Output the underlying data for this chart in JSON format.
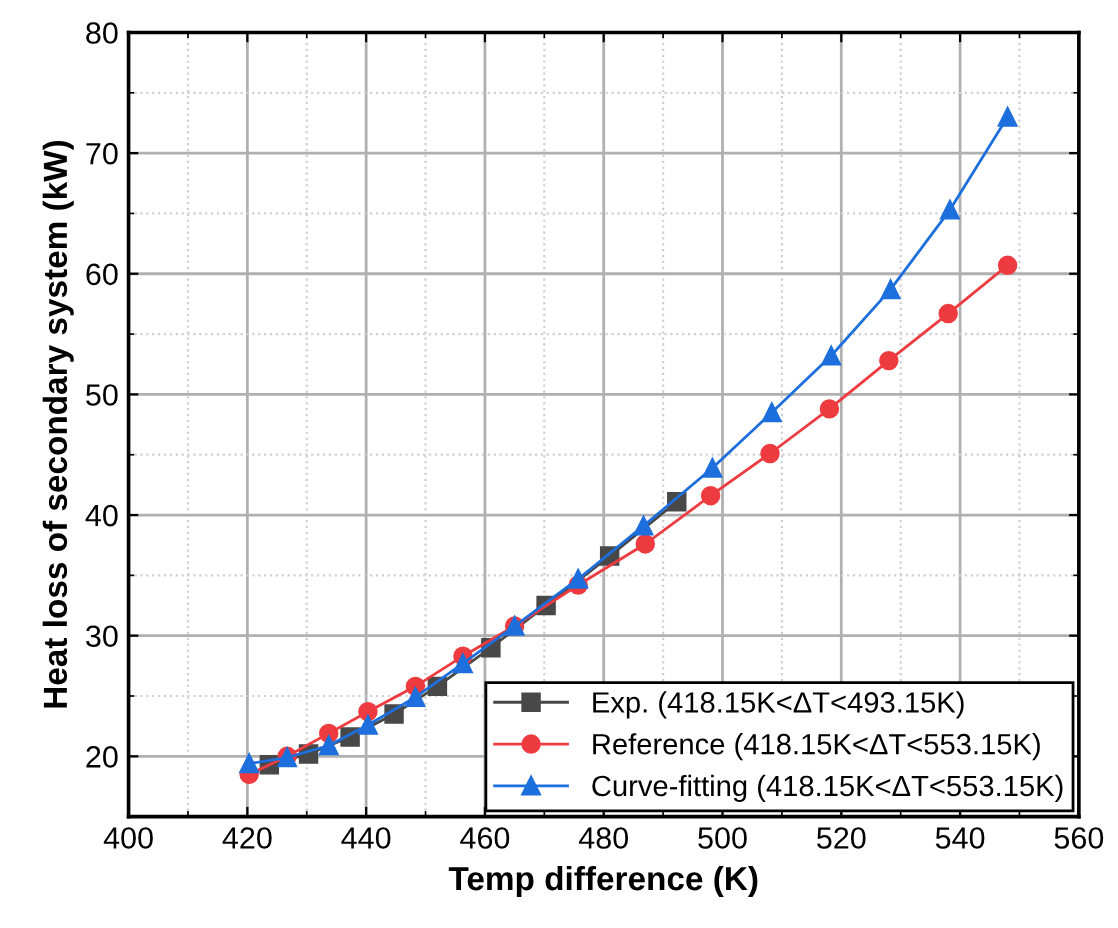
{
  "chart_data": {
    "type": "line",
    "xlabel": "Temp difference (K)",
    "ylabel": "Heat loss of secondary system (kW)",
    "xlim": [
      400,
      560
    ],
    "xticks": [
      400,
      420,
      440,
      460,
      480,
      500,
      520,
      540,
      560
    ],
    "ylim": [
      15,
      80
    ],
    "yticks": [
      20,
      30,
      40,
      50,
      60,
      70,
      80
    ],
    "grid": true,
    "legend": "bottom right",
    "series": [
      {
        "name": "Exp. (418.15K<ΔT<493.15K)",
        "color": "#484848",
        "marker": "square",
        "x": [
          423.7,
          430.3,
          437.3,
          444.7,
          452,
          461,
          470.3,
          481,
          492.3
        ],
        "values": [
          19.3,
          20.2,
          21.6,
          23.5,
          25.8,
          29.0,
          32.5,
          36.6,
          41.1
        ]
      },
      {
        "name": "Reference (418.15K<ΔT<553.15K)",
        "color": "#ee3b40",
        "marker": "circle",
        "x": [
          420.3,
          426.7,
          433.7,
          440.3,
          448.3,
          456.3,
          465,
          475.7,
          487,
          498,
          508,
          518,
          528,
          538,
          548
        ],
        "values": [
          18.5,
          20.0,
          21.9,
          23.7,
          25.8,
          28.3,
          30.8,
          34.2,
          37.6,
          41.6,
          45.1,
          48.8,
          52.8,
          56.7,
          60.7
        ]
      },
      {
        "name": "Curve-fitting (418.15K<ΔT<553.15K)",
        "color": "#1c6fdc",
        "marker": "triangle",
        "x": [
          420.3,
          426.7,
          433.7,
          440.3,
          448.3,
          456.3,
          465,
          475.7,
          486.7,
          498.3,
          508.3,
          518.3,
          528.3,
          538.3,
          548
        ],
        "values": [
          19.4,
          19.9,
          20.9,
          22.6,
          24.9,
          27.7,
          30.8,
          34.7,
          39.1,
          43.9,
          48.5,
          53.2,
          58.7,
          65.3,
          73.0
        ]
      }
    ]
  }
}
